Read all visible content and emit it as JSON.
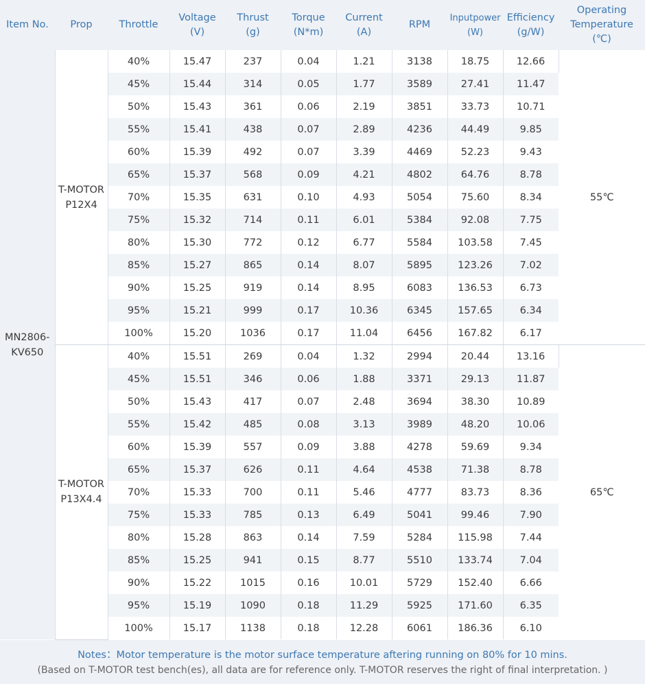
{
  "headers": [
    "Item No.",
    "Prop",
    "Throttle",
    "Voltage\n(V)",
    "Thrust\n(g)",
    "Torque\n(N*m)",
    "Current\n(A)",
    "RPM",
    "Inputpower\n(W)",
    "Efficiency\n(g/W)",
    "Operating\nTemperature\n(℃)"
  ],
  "item_no": "MN2806-KV650",
  "groups": [
    {
      "prop": "T-MOTOR P12X4",
      "temperature": "55℃",
      "rows": [
        [
          "40%",
          "15.47",
          "237",
          "0.04",
          "1.21",
          "3138",
          "18.75",
          "12.66"
        ],
        [
          "45%",
          "15.44",
          "314",
          "0.05",
          "1.77",
          "3589",
          "27.41",
          "11.47"
        ],
        [
          "50%",
          "15.43",
          "361",
          "0.06",
          "2.19",
          "3851",
          "33.73",
          "10.71"
        ],
        [
          "55%",
          "15.41",
          "438",
          "0.07",
          "2.89",
          "4236",
          "44.49",
          "9.85"
        ],
        [
          "60%",
          "15.39",
          "492",
          "0.07",
          "3.39",
          "4469",
          "52.23",
          "9.43"
        ],
        [
          "65%",
          "15.37",
          "568",
          "0.09",
          "4.21",
          "4802",
          "64.76",
          "8.78"
        ],
        [
          "70%",
          "15.35",
          "631",
          "0.10",
          "4.93",
          "5054",
          "75.60",
          "8.34"
        ],
        [
          "75%",
          "15.32",
          "714",
          "0.11",
          "6.01",
          "5384",
          "92.08",
          "7.75"
        ],
        [
          "80%",
          "15.30",
          "772",
          "0.12",
          "6.77",
          "5584",
          "103.58",
          "7.45"
        ],
        [
          "85%",
          "15.27",
          "865",
          "0.14",
          "8.07",
          "5895",
          "123.26",
          "7.02"
        ],
        [
          "90%",
          "15.25",
          "919",
          "0.14",
          "8.95",
          "6083",
          "136.53",
          "6.73"
        ],
        [
          "95%",
          "15.21",
          "999",
          "0.17",
          "10.36",
          "6345",
          "157.65",
          "6.34"
        ],
        [
          "100%",
          "15.20",
          "1036",
          "0.17",
          "11.04",
          "6456",
          "167.82",
          "6.17"
        ]
      ]
    },
    {
      "prop": "T-MOTOR P13X4.4",
      "temperature": "65℃",
      "rows": [
        [
          "40%",
          "15.51",
          "269",
          "0.04",
          "1.32",
          "2994",
          "20.44",
          "13.16"
        ],
        [
          "45%",
          "15.51",
          "346",
          "0.06",
          "1.88",
          "3371",
          "29.13",
          "11.87"
        ],
        [
          "50%",
          "15.43",
          "417",
          "0.07",
          "2.48",
          "3694",
          "38.30",
          "10.89"
        ],
        [
          "55%",
          "15.42",
          "485",
          "0.08",
          "3.13",
          "3989",
          "48.20",
          "10.06"
        ],
        [
          "60%",
          "15.39",
          "557",
          "0.09",
          "3.88",
          "4278",
          "59.69",
          "9.34"
        ],
        [
          "65%",
          "15.37",
          "626",
          "0.11",
          "4.64",
          "4538",
          "71.38",
          "8.78"
        ],
        [
          "70%",
          "15.33",
          "700",
          "0.11",
          "5.46",
          "4777",
          "83.73",
          "8.36"
        ],
        [
          "75%",
          "15.33",
          "785",
          "0.13",
          "6.49",
          "5041",
          "99.46",
          "7.90"
        ],
        [
          "80%",
          "15.28",
          "863",
          "0.14",
          "7.59",
          "5284",
          "115.98",
          "7.44"
        ],
        [
          "85%",
          "15.25",
          "941",
          "0.15",
          "8.77",
          "5510",
          "133.74",
          "7.04"
        ],
        [
          "90%",
          "15.22",
          "1015",
          "0.16",
          "10.01",
          "5729",
          "152.40",
          "6.66"
        ],
        [
          "95%",
          "15.19",
          "1090",
          "0.18",
          "11.29",
          "5925",
          "171.60",
          "6.35"
        ],
        [
          "100%",
          "15.17",
          "1138",
          "0.18",
          "12.28",
          "6061",
          "186.36",
          "6.10"
        ]
      ]
    }
  ],
  "notes": {
    "line1": "Notes：Motor temperature is the motor surface temperature aftering running on 80% for 10 mins.",
    "line2": "(Based on T-MOTOR test bench(es), all data are for reference only. T-MOTOR reserves the right of final interpretation. )"
  },
  "colors": {
    "header_bg": "#eef1f5",
    "header_text": "#3c78b4",
    "row_alt_bg": "#f1f4f7"
  }
}
